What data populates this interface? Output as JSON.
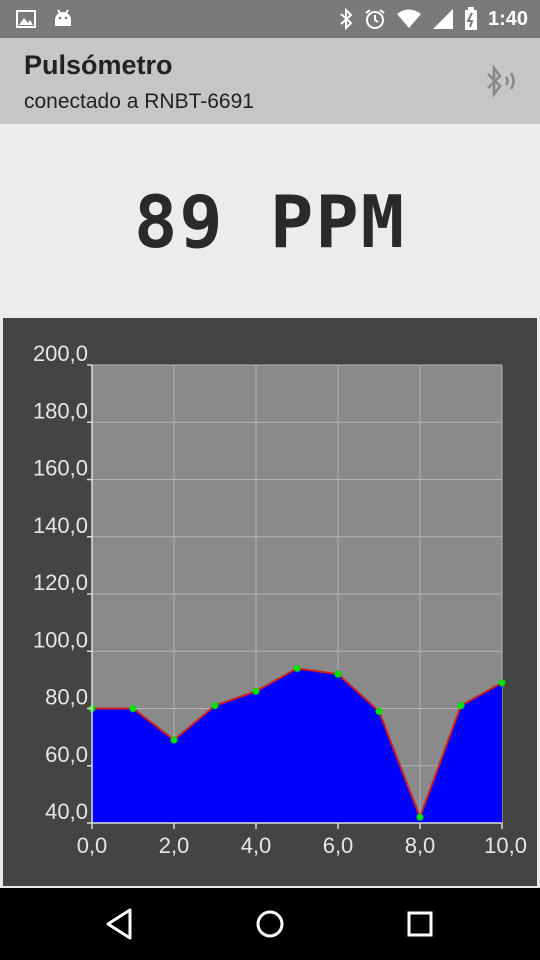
{
  "status_bar": {
    "time": "1:40",
    "icons": [
      "image-icon",
      "android-icon",
      "bluetooth-icon",
      "alarm-icon",
      "wifi-icon",
      "signal-icon",
      "battery-icon"
    ]
  },
  "appbar": {
    "title": "Pulsómetro",
    "subtitle": "conectado a RNBT-6691",
    "action_icon": "bluetooth-connected-icon"
  },
  "reading": {
    "bpm_text": "89 PPM"
  },
  "colors": {
    "fill": "#0000ff",
    "line": "#cc1f1f",
    "points": "#00e000",
    "plot_bg": "#8a8a8a",
    "chart_bg": "#444444"
  },
  "chart_data": {
    "type": "area",
    "x": [
      0,
      1,
      2,
      3,
      4,
      5,
      6,
      7,
      8,
      9,
      10
    ],
    "values": [
      80,
      80,
      69,
      81,
      86,
      94,
      92,
      79,
      42,
      81,
      89
    ],
    "xlim": [
      0,
      10
    ],
    "ylim": [
      40,
      200
    ],
    "x_ticks": [
      "0,0",
      "2,0",
      "4,0",
      "6,0",
      "8,0",
      "10,0"
    ],
    "x_tick_values": [
      0,
      2,
      4,
      6,
      8,
      10
    ],
    "y_ticks": [
      "40,0",
      "60,0",
      "80,0",
      "100,0",
      "120,0",
      "140,0",
      "160,0",
      "180,0",
      "200,0"
    ],
    "y_tick_values": [
      40,
      60,
      80,
      100,
      120,
      140,
      160,
      180,
      200
    ],
    "grid": true
  },
  "navigation": {
    "back": "back-icon",
    "home": "home-icon",
    "recents": "recents-icon"
  }
}
